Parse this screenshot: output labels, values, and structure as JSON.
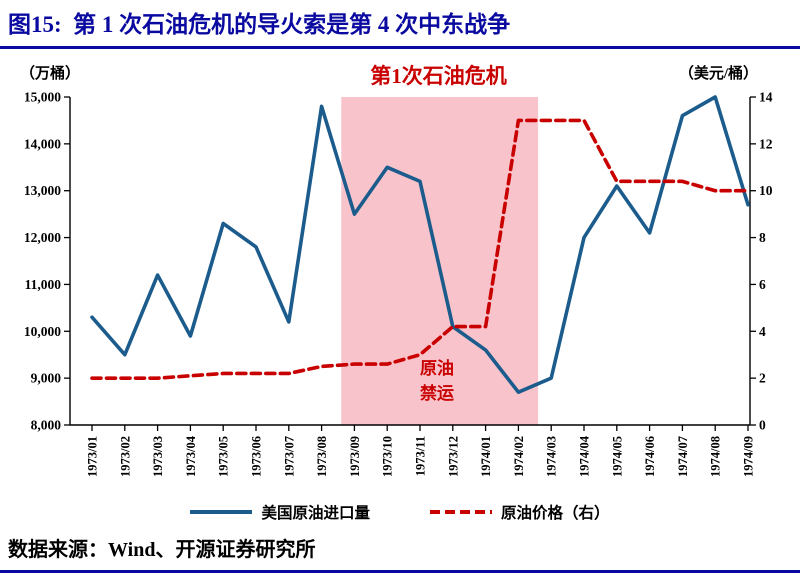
{
  "colors": {
    "title_navy": "#0a0aa0",
    "line_blue": "#1b5c8d",
    "line_red": "#c90000",
    "band_pink": "#f8bcc5"
  },
  "header": {
    "title": "图15:  第 1 次石油危机的导火索是第 4 次中东战争"
  },
  "chart_data": {
    "type": "line",
    "title": "第1次石油危机的导火索是第4次中东战争",
    "categories": [
      "1973/01",
      "1973/02",
      "1973/03",
      "1973/04",
      "1973/05",
      "1973/06",
      "1973/07",
      "1973/08",
      "1973/09",
      "1973/10",
      "1973/11",
      "1973/12",
      "1974/01",
      "1974/02",
      "1974/03",
      "1974/04",
      "1974/05",
      "1974/06",
      "1974/07",
      "1974/08",
      "1974/09"
    ],
    "series": [
      {
        "name": "美国原油进口量",
        "axis": "left",
        "line_style": "solid",
        "color": "#1b5c8d",
        "values": [
          10300,
          9500,
          11200,
          9900,
          12300,
          11800,
          10200,
          14800,
          12500,
          13500,
          13200,
          10100,
          9600,
          8700,
          9000,
          12000,
          13100,
          12100,
          14600,
          15000,
          12700
        ]
      },
      {
        "name": "原油价格（右）",
        "axis": "right",
        "line_style": "dashed",
        "color": "#c90000",
        "values": [
          2.0,
          2.0,
          2.0,
          2.1,
          2.2,
          2.2,
          2.2,
          2.5,
          2.6,
          2.6,
          3.0,
          4.2,
          4.2,
          13.0,
          13.0,
          13.0,
          10.4,
          10.4,
          10.4,
          10.0,
          10.0
        ]
      }
    ],
    "left_axis": {
      "unit": "（万桶）",
      "min": 8000,
      "max": 15000,
      "tick_labels": [
        "8,000",
        "9,000",
        "10,000",
        "11,000",
        "12,000",
        "13,000",
        "14,000",
        "15,000"
      ]
    },
    "right_axis": {
      "unit": "（美元/桶）",
      "min": 0,
      "max": 14,
      "tick_labels": [
        "0",
        "2",
        "4",
        "6",
        "8",
        "10",
        "12",
        "14"
      ]
    },
    "band": {
      "start_index": 7.6,
      "end_index": 13.6,
      "color": "#f8bcc5",
      "label_line1": "原油",
      "label_line2": "禁运",
      "label_color": "#c90000"
    },
    "annotations": {
      "crisis": "第1次石油危机",
      "crisis_color": "#c90000"
    },
    "legend_position": "bottom",
    "grid": false
  },
  "footer": {
    "source": "数据来源：Wind、开源证券研究所"
  }
}
